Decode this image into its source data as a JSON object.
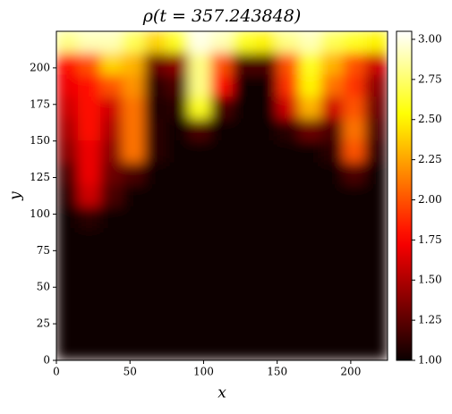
{
  "chart_data": {
    "type": "heatmap",
    "title": "ρ(t = 357.243848)",
    "x_label": "x",
    "y_label": "y",
    "x": [
      7.5,
      22.5,
      37.5,
      52.5,
      67.5,
      82.5,
      97.5,
      112.5,
      127.5,
      142.5,
      157.5,
      172.5,
      187.5,
      202.5,
      217.5
    ],
    "y": [
      217.5,
      202.5,
      187.5,
      172.5,
      157.5,
      142.5,
      127.5,
      112.5,
      97.5,
      82.5,
      67.5,
      52.5,
      37.5,
      22.5,
      7.5
    ],
    "z": [
      [
        2.8,
        2.9,
        2.9,
        2.7,
        2.4,
        2.6,
        3.0,
        2.9,
        2.6,
        2.5,
        2.8,
        2.9,
        2.7,
        2.6,
        2.5
      ],
      [
        1.8,
        2.0,
        2.4,
        2.3,
        1.3,
        1.4,
        2.8,
        2.0,
        1.2,
        1.2,
        2.0,
        2.6,
        2.3,
        2.0,
        1.6
      ],
      [
        1.7,
        1.8,
        2.0,
        2.2,
        1.1,
        1.2,
        2.8,
        1.8,
        1.0,
        1.0,
        1.9,
        2.5,
        2.1,
        1.9,
        1.4
      ],
      [
        1.6,
        1.8,
        1.6,
        2.1,
        1.05,
        1.1,
        2.6,
        1.2,
        1.0,
        1.0,
        1.6,
        2.3,
        1.6,
        2.0,
        1.3
      ],
      [
        1.5,
        1.8,
        1.5,
        2.1,
        1.1,
        1.0,
        1.2,
        1.0,
        1.0,
        1.0,
        1.1,
        1.3,
        1.2,
        2.1,
        1.2
      ],
      [
        1.4,
        1.7,
        1.4,
        2.1,
        1.1,
        1.0,
        1.0,
        1.0,
        1.0,
        1.0,
        1.0,
        1.0,
        1.1,
        2.0,
        1.1
      ],
      [
        1.2,
        1.7,
        1.3,
        1.2,
        1.0,
        1.0,
        1.0,
        1.0,
        1.0,
        1.0,
        1.0,
        1.0,
        1.0,
        1.2,
        1.0
      ],
      [
        1.1,
        1.6,
        1.2,
        1.0,
        1.0,
        1.0,
        1.0,
        1.0,
        1.0,
        1.0,
        1.0,
        1.0,
        1.0,
        1.0,
        1.0
      ],
      [
        1.0,
        1.1,
        1.0,
        1.0,
        1.0,
        1.0,
        1.0,
        1.0,
        1.0,
        1.0,
        1.0,
        1.0,
        1.0,
        1.0,
        1.0
      ],
      [
        1.0,
        1.0,
        1.0,
        1.0,
        1.0,
        1.0,
        1.0,
        1.0,
        1.0,
        1.0,
        1.0,
        1.0,
        1.0,
        1.0,
        1.0
      ],
      [
        1.0,
        1.0,
        1.0,
        1.0,
        1.0,
        1.0,
        1.0,
        1.0,
        1.0,
        1.0,
        1.0,
        1.0,
        1.0,
        1.0,
        1.0
      ],
      [
        1.0,
        1.0,
        1.0,
        1.0,
        1.0,
        1.0,
        1.0,
        1.0,
        1.0,
        1.0,
        1.0,
        1.0,
        1.0,
        1.0,
        1.0
      ],
      [
        1.0,
        1.0,
        1.0,
        1.0,
        1.0,
        1.0,
        1.0,
        1.0,
        1.0,
        1.0,
        1.0,
        1.0,
        1.0,
        1.0,
        1.0
      ],
      [
        1.0,
        1.0,
        1.0,
        1.0,
        1.0,
        1.0,
        1.0,
        1.0,
        1.0,
        1.0,
        1.0,
        1.0,
        1.0,
        1.0,
        1.0
      ],
      [
        1.0,
        1.0,
        1.0,
        1.0,
        1.0,
        1.0,
        1.0,
        1.0,
        1.0,
        1.0,
        1.0,
        1.0,
        1.0,
        1.0,
        1.0
      ]
    ],
    "xlim": [
      0,
      225
    ],
    "ylim": [
      0,
      225
    ],
    "xticks": [
      0,
      50,
      100,
      150,
      200
    ],
    "yticks": [
      0,
      25,
      50,
      75,
      100,
      125,
      150,
      175,
      200
    ],
    "colormap": "hot",
    "clim": [
      1,
      3.05
    ],
    "cticks": [
      {
        "value": 1,
        "label": "1.00"
      },
      {
        "value": 1.25,
        "label": "1.25"
      },
      {
        "value": 1.5,
        "label": "1.50"
      },
      {
        "value": 1.75,
        "label": "1.75"
      },
      {
        "value": 2,
        "label": "2.00"
      },
      {
        "value": 2.25,
        "label": "2.25"
      },
      {
        "value": 2.5,
        "label": "2.50"
      },
      {
        "value": 2.75,
        "label": "2.75"
      },
      {
        "value": 3,
        "label": "3.00"
      }
    ]
  }
}
